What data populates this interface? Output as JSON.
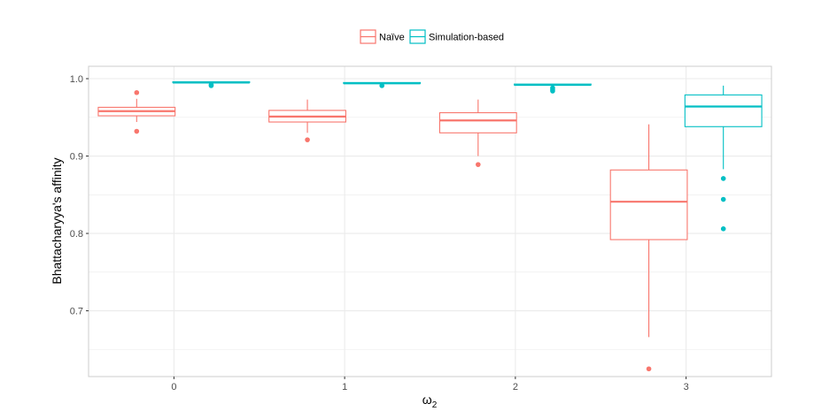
{
  "chart_data": {
    "type": "boxplot",
    "xlabel": "ω2",
    "ylabel": "Bhattacharyya's affinity",
    "categories": [
      "0",
      "1",
      "2",
      "3"
    ],
    "ylim": [
      0.615,
      1.016
    ],
    "yticks": [
      0.7,
      0.8,
      0.9,
      1.0
    ],
    "ytick_labels": [
      "0.7",
      "0.8",
      "0.9",
      "1.0"
    ],
    "grid": true,
    "legend_position": "top",
    "series": [
      {
        "name": "Naïve",
        "color": "#F8766D",
        "boxes": [
          {
            "category": "0",
            "whisker_low": 0.944,
            "q1": 0.952,
            "median": 0.958,
            "q3": 0.963,
            "whisker_high": 0.974,
            "outliers": [
              0.982,
              0.932
            ]
          },
          {
            "category": "1",
            "whisker_low": 0.93,
            "q1": 0.944,
            "median": 0.951,
            "q3": 0.959,
            "whisker_high": 0.973,
            "outliers": [
              0.921
            ]
          },
          {
            "category": "2",
            "whisker_low": 0.9,
            "q1": 0.93,
            "median": 0.946,
            "q3": 0.956,
            "whisker_high": 0.973,
            "outliers": [
              0.889
            ]
          },
          {
            "category": "3",
            "whisker_low": 0.666,
            "q1": 0.792,
            "median": 0.841,
            "q3": 0.882,
            "whisker_high": 0.941,
            "outliers": [
              0.625
            ]
          }
        ]
      },
      {
        "name": "Simulation-based",
        "color": "#00BFC4",
        "boxes": [
          {
            "category": "0",
            "whisker_low": 0.994,
            "q1": 0.995,
            "median": 0.995,
            "q3": 0.996,
            "whisker_high": 0.996,
            "outliers": [
              0.992,
              0.991
            ]
          },
          {
            "category": "1",
            "whisker_low": 0.993,
            "q1": 0.994,
            "median": 0.994,
            "q3": 0.995,
            "whisker_high": 0.995,
            "outliers": [
              0.991
            ]
          },
          {
            "category": "2",
            "whisker_low": 0.991,
            "q1": 0.992,
            "median": 0.992,
            "q3": 0.993,
            "whisker_high": 0.993,
            "outliers": [
              0.988,
              0.986,
              0.984
            ]
          },
          {
            "category": "3",
            "whisker_low": 0.883,
            "q1": 0.938,
            "median": 0.964,
            "q3": 0.979,
            "whisker_high": 0.991,
            "outliers": [
              0.871,
              0.844,
              0.806
            ]
          }
        ]
      }
    ]
  }
}
